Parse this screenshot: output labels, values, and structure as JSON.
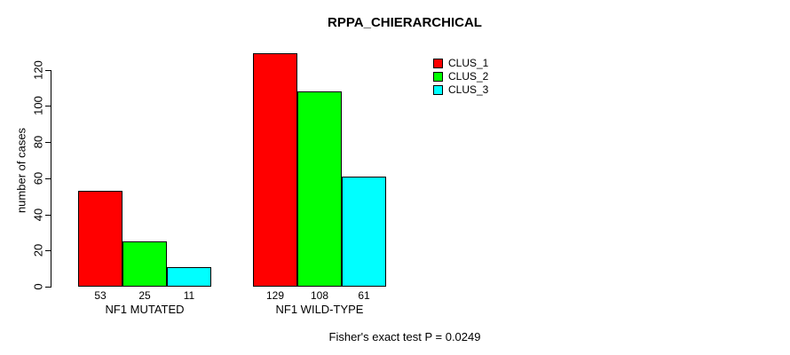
{
  "title": "RPPA_CHIERARCHICAL",
  "footnote": "Fisher's exact test P = 0.0249",
  "chart_data": {
    "type": "bar",
    "title": "RPPA_CHIERARCHICAL",
    "xlabel": "",
    "ylabel": "number of cases",
    "ylim": [
      0,
      130
    ],
    "y_ticks": [
      0,
      20,
      40,
      60,
      80,
      100,
      120
    ],
    "grid": false,
    "legend_position": "top-right",
    "categories": [
      "NF1 MUTATED",
      "NF1 WILD-TYPE"
    ],
    "series": [
      {
        "name": "CLUS_1",
        "color": "#FF0000",
        "values": [
          53,
          129
        ]
      },
      {
        "name": "CLUS_2",
        "color": "#00FF00",
        "values": [
          25,
          108
        ]
      },
      {
        "name": "CLUS_3",
        "color": "#00FFFF",
        "values": [
          11,
          61
        ]
      }
    ],
    "bar_value_labels": [
      [
        53,
        129
      ],
      [
        25,
        108
      ],
      [
        11,
        61
      ]
    ],
    "annotation": "Fisher's exact test P = 0.0249"
  }
}
